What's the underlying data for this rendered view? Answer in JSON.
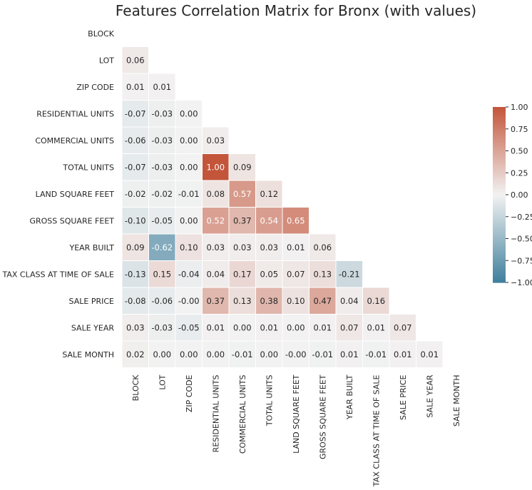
{
  "chart_data": {
    "type": "heatmap",
    "title": "Features Correlation Matrix for Bronx (with values)",
    "labels": [
      "BLOCK",
      "LOT",
      "ZIP CODE",
      "RESIDENTIAL UNITS",
      "COMMERCIAL UNITS",
      "TOTAL UNITS",
      "LAND SQUARE FEET",
      "GROSS SQUARE FEET",
      "YEAR BUILT",
      "TAX CLASS AT TIME OF SALE",
      "SALE PRICE",
      "SALE YEAR",
      "SALE MONTH"
    ],
    "mask": "upper-triangle-and-diagonal",
    "lower_triangle_values": [
      [],
      [
        "0.06"
      ],
      [
        "0.01",
        "0.01"
      ],
      [
        "-0.07",
        "-0.03",
        "0.00"
      ],
      [
        "-0.06",
        "-0.03",
        "0.00",
        "0.03"
      ],
      [
        "-0.07",
        "-0.03",
        "0.00",
        "1.00",
        "0.09"
      ],
      [
        "-0.02",
        "-0.02",
        "-0.01",
        "0.08",
        "0.57",
        "0.12"
      ],
      [
        "-0.10",
        "-0.05",
        "0.00",
        "0.52",
        "0.37",
        "0.54",
        "0.65"
      ],
      [
        "0.09",
        "-0.62",
        "0.10",
        "0.03",
        "0.03",
        "0.03",
        "0.01",
        "0.06"
      ],
      [
        "-0.13",
        "0.15",
        "-0.04",
        "0.04",
        "0.17",
        "0.05",
        "0.07",
        "0.13",
        "-0.21"
      ],
      [
        "-0.08",
        "-0.06",
        "-0.00",
        "0.37",
        "0.13",
        "0.38",
        "0.10",
        "0.47",
        "0.04",
        "0.16"
      ],
      [
        "0.03",
        "-0.03",
        "-0.05",
        "0.01",
        "0.00",
        "0.01",
        "0.00",
        "0.01",
        "0.07",
        "0.01",
        "0.07"
      ],
      [
        "0.02",
        "0.00",
        "0.00",
        "0.00",
        "-0.01",
        "0.00",
        "-0.00",
        "-0.01",
        "0.01",
        "-0.01",
        "0.01",
        "0.01"
      ]
    ],
    "colorbar": {
      "range": [
        -1.0,
        1.0
      ],
      "ticks": [
        "1.00",
        "0.75",
        "0.50",
        "0.25",
        "0.00",
        "−0.25",
        "−0.50",
        "−0.75",
        "−1.00"
      ],
      "colormap": "diverging blue-white-red"
    },
    "colors": {
      "negative": "#3f7f9c",
      "neutral": "#f2f2f2",
      "positive": "#c3553a"
    },
    "grid": false,
    "legend": "colorbar right"
  }
}
